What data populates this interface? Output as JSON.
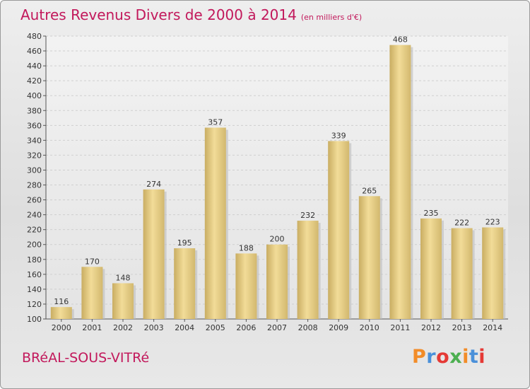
{
  "header": {
    "title": "Autres Revenus Divers de 2000 à 2014",
    "subtitle": "(en milliers d'€)"
  },
  "footer": {
    "city": "BRéAL-SOUS-VITRé",
    "logo_text": "Proxiti",
    "logo_colors": [
      "#f28c28",
      "#4a90d9",
      "#e53935",
      "#4caf50",
      "#f28c28",
      "#4a90d9",
      "#e53935"
    ]
  },
  "chart_data": {
    "type": "bar",
    "categories": [
      "2000",
      "2001",
      "2002",
      "2003",
      "2004",
      "2005",
      "2006",
      "2007",
      "2008",
      "2009",
      "2010",
      "2011",
      "2012",
      "2013",
      "2014"
    ],
    "values": [
      116,
      170,
      148,
      274,
      195,
      357,
      188,
      200,
      232,
      339,
      265,
      468,
      235,
      222,
      223
    ],
    "title": "Autres Revenus Divers de 2000 à 2014",
    "xlabel": "",
    "ylabel": "",
    "ylim": [
      100,
      480
    ],
    "yticks": [
      100,
      120,
      140,
      160,
      180,
      200,
      220,
      240,
      260,
      280,
      300,
      320,
      340,
      360,
      380,
      400,
      420,
      440,
      460,
      480
    ],
    "grid": true,
    "legend": "none",
    "bar_color": "#e6cc80"
  }
}
